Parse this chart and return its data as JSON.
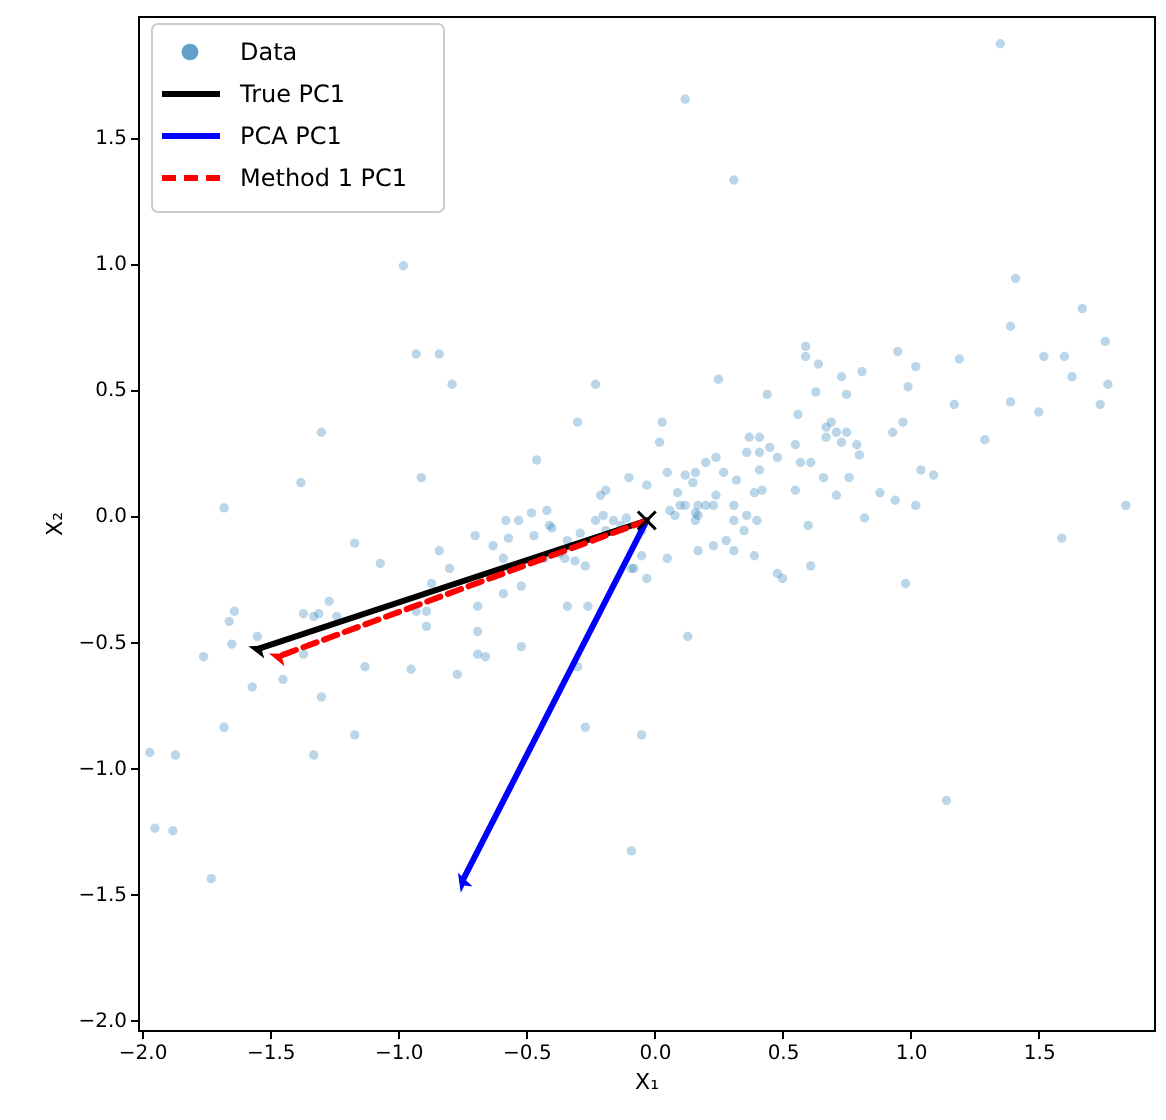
{
  "chart_data": {
    "type": "scatter",
    "xlabel": "X₁",
    "ylabel": "X₂",
    "xlim": [
      -2.016,
      1.95
    ],
    "ylim": [
      -2.04,
      1.98
    ],
    "xticks": [
      {
        "value": -2,
        "label": "−2.0"
      },
      {
        "value": -1.5,
        "label": "−1.5"
      },
      {
        "value": -1,
        "label": "−1.0"
      },
      {
        "value": -0.5,
        "label": "−0.5"
      },
      {
        "value": 0,
        "label": "0.0"
      },
      {
        "value": 0.5,
        "label": "0.5"
      },
      {
        "value": 1,
        "label": "1.0"
      },
      {
        "value": 1.5,
        "label": "1.5"
      }
    ],
    "yticks": [
      {
        "value": -2,
        "label": "−2.0"
      },
      {
        "value": -1.5,
        "label": "−1.5"
      },
      {
        "value": -1,
        "label": "−1.0"
      },
      {
        "value": -0.5,
        "label": "−0.5"
      },
      {
        "value": 0,
        "label": "0.0"
      },
      {
        "value": 0.5,
        "label": "0.5"
      },
      {
        "value": 1,
        "label": "1.0"
      },
      {
        "value": 1.5,
        "label": "1.5"
      }
    ],
    "grid": false,
    "legend": "top left",
    "series": [
      {
        "name": "Data",
        "type": "scatter",
        "color": "#1f77b4",
        "marker": "circle",
        "x": [
          1.84,
          1.35,
          0.12,
          0.31,
          -0.98,
          -0.93,
          -0.84,
          -0.79,
          -0.23,
          -1.3,
          -0.3,
          -1.68,
          -1.38,
          -0.91,
          -0.46,
          1.41,
          1.67,
          1.39,
          1.76,
          1.77,
          1.74,
          1.6,
          1.52,
          1.63,
          1.5,
          1.39,
          1.29,
          1.19,
          1.17,
          0.95,
          1.02,
          0.99,
          0.97,
          0.93,
          1.04,
          1.09,
          1.02,
          0.88,
          0.94,
          0.81,
          0.73,
          0.75,
          0.63,
          0.59,
          0.59,
          0.64,
          0.56,
          0.69,
          0.67,
          0.71,
          0.75,
          0.73,
          0.79,
          0.8,
          0.67,
          0.55,
          0.57,
          0.61,
          0.66,
          0.76,
          0.71,
          0.55,
          0.82,
          0.6,
          0.44,
          0.37,
          0.41,
          0.36,
          0.41,
          0.45,
          0.48,
          0.41,
          0.32,
          0.27,
          0.24,
          0.2,
          0.25,
          0.16,
          0.05,
          0.03,
          0.02,
          -0.1,
          -0.03,
          0.42,
          0.39,
          0.31,
          0.36,
          0.4,
          0.31,
          0.17,
          0.17,
          0.1,
          0.23,
          0.06,
          -0.19,
          -0.21,
          -0.2,
          -0.16,
          -0.23,
          -0.42,
          -0.41,
          -0.31,
          -0.27,
          -0.08,
          -0.05,
          -0.03,
          0.05,
          0.17,
          0.23,
          0.28,
          0.31,
          0.39,
          0.48,
          0.5,
          0.61,
          0.08,
          0.12,
          0.16,
          0.16,
          0.2,
          0.09,
          0.12,
          0.15,
          0.24,
          -0.11,
          -0.13,
          -0.19,
          -0.29,
          -0.34,
          -0.37,
          -0.05,
          -0.05,
          -0.09,
          0.13,
          1.14,
          1.59,
          0.98,
          0.35,
          -0.09,
          -1.17,
          -1.07,
          -0.84,
          -0.8,
          -0.7,
          -0.63,
          -0.58,
          -0.57,
          -0.53,
          -0.48,
          -0.47,
          -0.4,
          -0.59,
          -0.59,
          -0.52,
          -0.69,
          -0.69,
          -0.69,
          -0.66,
          -0.52,
          -0.77,
          -0.95,
          -1.13,
          -0.89,
          -0.93,
          -0.89,
          -0.87,
          -1.27,
          -1.37,
          -1.33,
          -1.31,
          -1.24,
          -1.55,
          -1.66,
          -1.64,
          -1.65,
          -1.76,
          -1.37,
          -1.45,
          -1.57,
          -1.3,
          -1.68,
          -1.17,
          -1.33,
          -1.97,
          -1.87,
          -1.95,
          -1.88,
          -1.73,
          -0.27,
          -0.3,
          -0.34,
          -0.26,
          -0.35,
          -0.43
        ],
        "values": [
          0.04,
          1.87,
          1.65,
          1.33,
          0.99,
          0.64,
          0.64,
          0.52,
          0.52,
          0.33,
          0.37,
          0.03,
          0.13,
          0.15,
          0.22,
          0.94,
          0.82,
          0.75,
          0.69,
          0.52,
          0.44,
          0.63,
          0.63,
          0.55,
          0.41,
          0.45,
          0.3,
          0.62,
          0.44,
          0.65,
          0.59,
          0.51,
          0.37,
          0.33,
          0.18,
          0.16,
          0.04,
          0.09,
          0.06,
          0.57,
          0.55,
          0.48,
          0.49,
          0.67,
          0.63,
          0.6,
          0.4,
          0.37,
          0.35,
          0.33,
          0.33,
          0.29,
          0.28,
          0.24,
          0.31,
          0.28,
          0.21,
          0.21,
          0.15,
          0.15,
          0.08,
          0.1,
          -0.01,
          -0.04,
          0.48,
          0.31,
          0.31,
          0.25,
          0.25,
          0.27,
          0.23,
          0.18,
          0.14,
          0.17,
          0.23,
          0.21,
          0.54,
          0.17,
          0.17,
          0.37,
          0.29,
          0.15,
          0.12,
          0.1,
          0.09,
          0.04,
          0.0,
          -0.02,
          -0.02,
          0.04,
          0.0,
          0.04,
          0.04,
          0.02,
          0.1,
          0.08,
          0.0,
          -0.02,
          -0.02,
          0.02,
          -0.04,
          -0.18,
          -0.2,
          -0.21,
          -0.16,
          -0.25,
          -0.17,
          -0.14,
          -0.12,
          -0.1,
          -0.14,
          -0.16,
          -0.23,
          -0.25,
          -0.2,
          0.0,
          0.04,
          0.01,
          -0.02,
          0.04,
          0.09,
          0.16,
          0.13,
          0.08,
          -0.01,
          -0.04,
          -0.06,
          -0.07,
          -0.1,
          -0.15,
          -0.06,
          -0.87,
          -1.33,
          -0.48,
          -1.13,
          -0.09,
          -0.27,
          -0.06,
          -0.21,
          -0.11,
          -0.19,
          -0.14,
          -0.21,
          -0.08,
          -0.12,
          -0.02,
          -0.09,
          -0.02,
          0.01,
          -0.08,
          -0.05,
          -0.17,
          -0.31,
          -0.28,
          -0.36,
          -0.46,
          -0.55,
          -0.56,
          -0.52,
          -0.63,
          -0.61,
          -0.6,
          -0.44,
          -0.38,
          -0.38,
          -0.27,
          -0.34,
          -0.39,
          -0.4,
          -0.39,
          -0.4,
          -0.48,
          -0.42,
          -0.38,
          -0.51,
          -0.56,
          -0.55,
          -0.65,
          -0.68,
          -0.72,
          -0.84,
          -0.87,
          -0.95,
          -0.94,
          -0.95,
          -1.24,
          -1.25,
          -1.44,
          -0.84,
          -0.6,
          -0.36,
          -0.36,
          -0.17,
          -0.17
        ]
      },
      {
        "name": "True PC1",
        "type": "line",
        "color": "#000000",
        "line_style": "solid",
        "x": [
          -0.03,
          -1.55
        ],
        "values": [
          -0.02,
          -0.53
        ]
      },
      {
        "name": "PCA PC1",
        "type": "line",
        "color": "#0000ff",
        "line_style": "solid",
        "x": [
          -0.03,
          -0.75
        ],
        "values": [
          -0.02,
          -1.45
        ]
      },
      {
        "name": "Method 1 PC1",
        "type": "line",
        "color": "#ff0000",
        "line_style": "dashed",
        "x": [
          -0.03,
          -1.47
        ],
        "values": [
          -0.02,
          -0.56
        ]
      },
      {
        "type": "scatter",
        "color": "#000000",
        "marker": "cross",
        "x": [
          -0.03
        ],
        "values": [
          -0.02
        ]
      }
    ]
  }
}
